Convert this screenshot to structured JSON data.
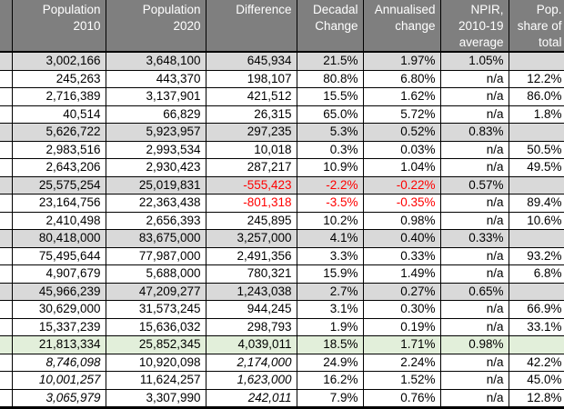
{
  "colors": {
    "header_bg": "#7f7f7f",
    "header_text": "#ffffff",
    "subtotal_row_bg": "#d9d9d9",
    "highlight_row_bg": "#e2efda",
    "negative_text": "#ff0000",
    "border": "#000000"
  },
  "chart_data": {
    "type": "table",
    "columns": [
      "",
      "Population\n2010",
      "Population\n2020",
      "Difference",
      "Decadal\nChange",
      "Annualised\nchange",
      "NPIR,\n2010-19\naverage",
      "Pop.\nshare of\ntotal"
    ],
    "rows": [
      {
        "shade": "gray",
        "italic_cols": [],
        "values": [
          "3,002,166",
          "3,648,100",
          "645,934",
          "21.5%",
          "1.97%",
          "1.05%",
          ""
        ]
      },
      {
        "shade": "none",
        "italic_cols": [],
        "values": [
          "245,263",
          "443,370",
          "198,107",
          "80.8%",
          "6.80%",
          "n/a",
          "12.2%"
        ]
      },
      {
        "shade": "none",
        "italic_cols": [],
        "values": [
          "2,716,389",
          "3,137,901",
          "421,512",
          "15.5%",
          "1.62%",
          "n/a",
          "86.0%"
        ]
      },
      {
        "shade": "none",
        "italic_cols": [],
        "values": [
          "40,514",
          "66,829",
          "26,315",
          "65.0%",
          "5.72%",
          "n/a",
          "1.8%"
        ]
      },
      {
        "shade": "gray",
        "italic_cols": [],
        "values": [
          "5,626,722",
          "5,923,957",
          "297,235",
          "5.3%",
          "0.52%",
          "0.83%",
          ""
        ]
      },
      {
        "shade": "none",
        "italic_cols": [],
        "values": [
          "2,983,516",
          "2,993,534",
          "10,018",
          "0.3%",
          "0.03%",
          "n/a",
          "50.5%"
        ]
      },
      {
        "shade": "none",
        "italic_cols": [],
        "values": [
          "2,643,206",
          "2,930,423",
          "287,217",
          "10.9%",
          "1.04%",
          "n/a",
          "49.5%"
        ]
      },
      {
        "shade": "gray",
        "italic_cols": [],
        "values": [
          "25,575,254",
          "25,019,831",
          "-555,423",
          "-2.2%",
          "-0.22%",
          "0.57%",
          ""
        ]
      },
      {
        "shade": "none",
        "italic_cols": [],
        "values": [
          "23,164,756",
          "22,363,438",
          "-801,318",
          "-3.5%",
          "-0.35%",
          "n/a",
          "89.4%"
        ]
      },
      {
        "shade": "none",
        "italic_cols": [],
        "values": [
          "2,410,498",
          "2,656,393",
          "245,895",
          "10.2%",
          "0.98%",
          "n/a",
          "10.6%"
        ]
      },
      {
        "shade": "gray",
        "italic_cols": [],
        "values": [
          "80,418,000",
          "83,675,000",
          "3,257,000",
          "4.1%",
          "0.40%",
          "0.33%",
          ""
        ]
      },
      {
        "shade": "none",
        "italic_cols": [],
        "values": [
          "75,495,644",
          "77,987,000",
          "2,491,356",
          "3.3%",
          "0.33%",
          "n/a",
          "93.2%"
        ]
      },
      {
        "shade": "none",
        "italic_cols": [],
        "values": [
          "4,907,679",
          "5,688,000",
          "780,321",
          "15.9%",
          "1.49%",
          "n/a",
          "6.8%"
        ]
      },
      {
        "shade": "gray",
        "italic_cols": [],
        "values": [
          "45,966,239",
          "47,209,277",
          "1,243,038",
          "2.7%",
          "0.27%",
          "0.65%",
          ""
        ]
      },
      {
        "shade": "none",
        "italic_cols": [],
        "values": [
          "30,629,000",
          "31,573,245",
          "944,245",
          "3.1%",
          "0.30%",
          "n/a",
          "66.9%"
        ]
      },
      {
        "shade": "none",
        "italic_cols": [],
        "values": [
          "15,337,239",
          "15,636,032",
          "298,793",
          "1.9%",
          "0.19%",
          "n/a",
          "33.1%"
        ]
      },
      {
        "shade": "green",
        "italic_cols": [],
        "values": [
          "21,813,334",
          "25,852,345",
          "4,039,011",
          "18.5%",
          "1.71%",
          "0.98%",
          ""
        ]
      },
      {
        "shade": "none",
        "italic_cols": [
          0,
          2
        ],
        "values": [
          "8,746,098",
          "10,920,098",
          "2,174,000",
          "24.9%",
          "2.24%",
          "n/a",
          "42.2%"
        ]
      },
      {
        "shade": "none",
        "italic_cols": [
          0,
          2
        ],
        "values": [
          "10,001,257",
          "11,624,257",
          "1,623,000",
          "16.2%",
          "1.52%",
          "n/a",
          "45.0%"
        ]
      },
      {
        "shade": "none",
        "italic_cols": [
          0,
          2
        ],
        "values": [
          "3,065,979",
          "3,307,990",
          "242,011",
          "7.9%",
          "0.76%",
          "n/a",
          "12.8%"
        ]
      }
    ]
  }
}
